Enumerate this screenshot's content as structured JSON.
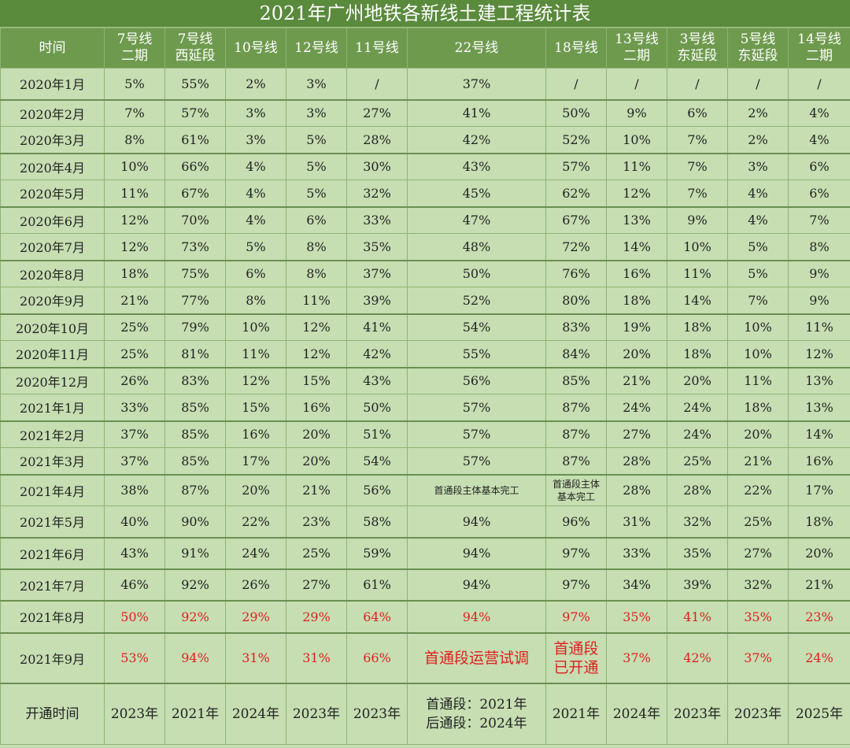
{
  "title": "2021年广州地铁各新线土建工程统计表",
  "header": {
    "time_col": "时间",
    "lines": [
      [
        "7号线",
        "二期"
      ],
      [
        "7号线",
        "西延段"
      ],
      [
        "10号线"
      ],
      [
        "12号线"
      ],
      [
        "11号线"
      ],
      [
        "22号线"
      ],
      [
        "18号线"
      ],
      [
        "13号线",
        "二期"
      ],
      [
        "3号线",
        "东延段"
      ],
      [
        "5号线",
        "东延段"
      ],
      [
        "14号线",
        "二期"
      ]
    ]
  },
  "rows": [
    {
      "month": "2020年1月",
      "values": [
        "5%",
        "55%",
        "2%",
        "3%",
        "/",
        "37%",
        "/",
        "/",
        "/",
        "/",
        "/"
      ]
    },
    {
      "month": "2020年2月",
      "values": [
        "7%",
        "57%",
        "3%",
        "3%",
        "27%",
        "41%",
        "50%",
        "9%",
        "6%",
        "2%",
        "4%"
      ]
    },
    {
      "month": "2020年3月",
      "values": [
        "8%",
        "61%",
        "3%",
        "5%",
        "28%",
        "42%",
        "52%",
        "10%",
        "7%",
        "2%",
        "4%"
      ]
    },
    {
      "month": "2020年4月",
      "values": [
        "10%",
        "66%",
        "4%",
        "5%",
        "30%",
        "43%",
        "57%",
        "11%",
        "7%",
        "3%",
        "6%"
      ]
    },
    {
      "month": "2020年5月",
      "values": [
        "11%",
        "67%",
        "4%",
        "5%",
        "32%",
        "45%",
        "62%",
        "12%",
        "7%",
        "4%",
        "6%"
      ]
    },
    {
      "month": "2020年6月",
      "values": [
        "12%",
        "70%",
        "4%",
        "6%",
        "33%",
        "47%",
        "67%",
        "13%",
        "9%",
        "4%",
        "7%"
      ]
    },
    {
      "month": "2020年7月",
      "values": [
        "12%",
        "73%",
        "5%",
        "8%",
        "35%",
        "48%",
        "72%",
        "14%",
        "10%",
        "5%",
        "8%"
      ]
    },
    {
      "month": "2020年8月",
      "values": [
        "18%",
        "75%",
        "6%",
        "8%",
        "37%",
        "50%",
        "76%",
        "16%",
        "11%",
        "5%",
        "9%"
      ]
    },
    {
      "month": "2020年9月",
      "values": [
        "21%",
        "77%",
        "8%",
        "11%",
        "39%",
        "52%",
        "80%",
        "18%",
        "14%",
        "7%",
        "9%"
      ]
    },
    {
      "month": "2020年10月",
      "values": [
        "25%",
        "79%",
        "10%",
        "12%",
        "41%",
        "54%",
        "83%",
        "19%",
        "18%",
        "10%",
        "11%"
      ]
    },
    {
      "month": "2020年11月",
      "values": [
        "25%",
        "81%",
        "11%",
        "12%",
        "42%",
        "55%",
        "84%",
        "20%",
        "18%",
        "10%",
        "12%"
      ]
    },
    {
      "month": "2020年12月",
      "values": [
        "26%",
        "83%",
        "12%",
        "15%",
        "43%",
        "56%",
        "85%",
        "21%",
        "20%",
        "11%",
        "13%"
      ]
    },
    {
      "month": "2021年1月",
      "values": [
        "33%",
        "85%",
        "15%",
        "16%",
        "50%",
        "57%",
        "87%",
        "24%",
        "24%",
        "18%",
        "13%"
      ]
    },
    {
      "month": "2021年2月",
      "values": [
        "37%",
        "85%",
        "16%",
        "20%",
        "51%",
        "57%",
        "87%",
        "27%",
        "24%",
        "20%",
        "14%"
      ]
    },
    {
      "month": "2021年3月",
      "values": [
        "37%",
        "85%",
        "17%",
        "20%",
        "54%",
        "57%",
        "87%",
        "28%",
        "25%",
        "21%",
        "16%"
      ]
    },
    {
      "month": "2021年4月",
      "values": [
        "38%",
        "87%",
        "20%",
        "21%",
        "56%",
        "首通段主体基本完工",
        "首通段主体基本完工",
        "28%",
        "28%",
        "22%",
        "17%"
      ]
    },
    {
      "month": "2021年5月",
      "values": [
        "40%",
        "90%",
        "22%",
        "23%",
        "58%",
        "94%",
        "96%",
        "31%",
        "32%",
        "25%",
        "18%"
      ]
    },
    {
      "month": "2021年6月",
      "values": [
        "43%",
        "91%",
        "24%",
        "25%",
        "59%",
        "94%",
        "97%",
        "33%",
        "35%",
        "27%",
        "20%"
      ]
    },
    {
      "month": "2021年7月",
      "values": [
        "46%",
        "92%",
        "26%",
        "27%",
        "61%",
        "94%",
        "97%",
        "34%",
        "39%",
        "32%",
        "21%"
      ]
    },
    {
      "month": "2021年8月",
      "values": [
        "50%",
        "92%",
        "29%",
        "29%",
        "64%",
        "94%",
        "97%",
        "35%",
        "41%",
        "35%",
        "23%"
      ]
    },
    {
      "month": "2021年9月",
      "values": [
        "53%",
        "94%",
        "31%",
        "31%",
        "66%",
        "首通段运营试调",
        "首通段已开通",
        "37%",
        "42%",
        "37%",
        "24%"
      ]
    }
  ],
  "footer": {
    "label": "开通时间",
    "values": [
      "2023年",
      "2021年",
      "2024年",
      "2023年",
      "2023年",
      "首通段：2021年\n后通段：2024年",
      "2021年",
      "2024年",
      "2023年",
      "2023年",
      "2025年"
    ]
  },
  "colors": {
    "title_bg": "#5a8a3c",
    "header_bg": "#6e9a4e",
    "body_bg": "#c6deb2",
    "highlight": "#e02020"
  }
}
